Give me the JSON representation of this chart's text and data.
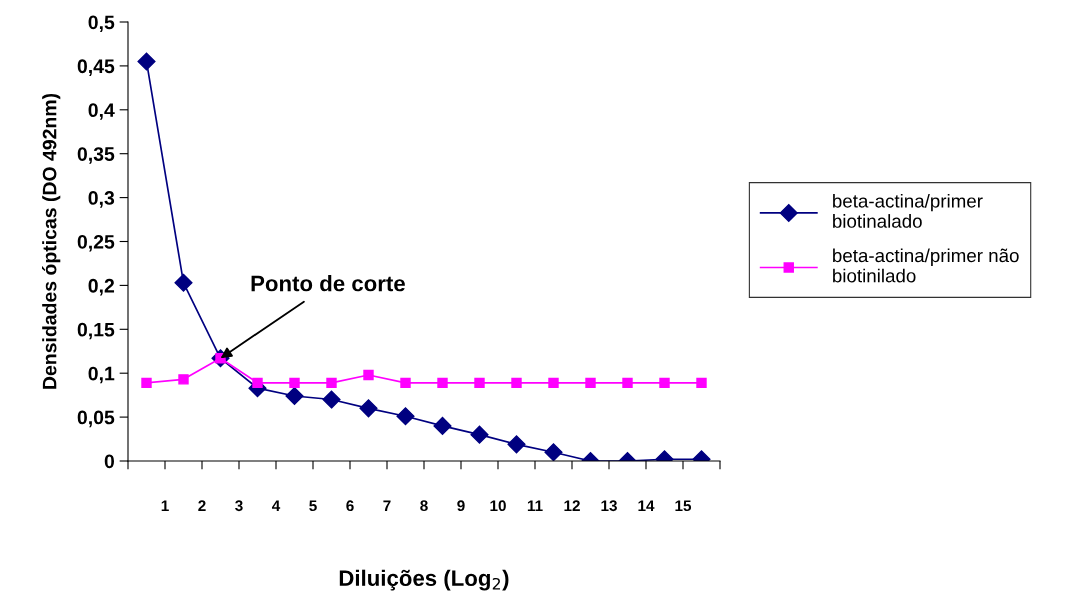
{
  "chart_data": {
    "type": "line",
    "xlabel": "Diluições (Log$_{2}$)",
    "ylabel": "Densidades ópticas (DO 492nm)",
    "x": [
      0.5,
      1.5,
      2.5,
      3.5,
      4.5,
      5.5,
      6.5,
      7.5,
      8.5,
      9.5,
      10.5,
      11.5,
      12.5,
      13.5,
      14.5,
      15.5
    ],
    "series": [
      {
        "name": "beta-actina/primer biotinalado",
        "color": "#000080",
        "marker": "diamond",
        "values": [
          0.455,
          0.203,
          0.117,
          0.083,
          0.074,
          0.07,
          0.06,
          0.051,
          0.04,
          0.03,
          0.019,
          0.01,
          0.0,
          0.0,
          0.002,
          0.002
        ]
      },
      {
        "name": "beta-actina/primer não biotinilado",
        "color": "#ff00ff",
        "marker": "square",
        "values": [
          0.089,
          0.093,
          0.117,
          0.089,
          0.089,
          0.089,
          0.098,
          0.089,
          0.089,
          0.089,
          0.089,
          0.089,
          0.089,
          0.089,
          0.089,
          0.089
        ]
      }
    ],
    "xlim": [
      0,
      16
    ],
    "xticks": [
      {
        "value": 0,
        "label": null
      },
      1,
      2,
      3,
      4,
      5,
      6,
      7,
      8,
      9,
      10,
      11,
      12,
      13,
      14,
      15,
      {
        "value": 16,
        "label": null
      }
    ],
    "ylim": [
      0,
      0.5
    ],
    "yticks": [
      {
        "value": 0,
        "label": "0"
      },
      {
        "value": 0.05,
        "label": "0,05"
      },
      {
        "value": 0.1,
        "label": "0,1"
      },
      {
        "value": 0.15,
        "label": "0,15"
      },
      {
        "value": 0.2,
        "label": "0,2"
      },
      {
        "value": 0.25,
        "label": "0,25"
      },
      {
        "value": 0.3,
        "label": "0,3"
      },
      {
        "value": 0.35,
        "label": "0,35"
      },
      {
        "value": 0.4,
        "label": "0,4"
      },
      {
        "value": 0.45,
        "label": "0,45"
      },
      {
        "value": 0.5,
        "label": "0,5"
      }
    ],
    "annotations": [
      {
        "text": "Ponto de corte",
        "x": 2.5,
        "y": 0.117
      }
    ],
    "grid": false,
    "legend": "right",
    "line_style": "solid"
  }
}
